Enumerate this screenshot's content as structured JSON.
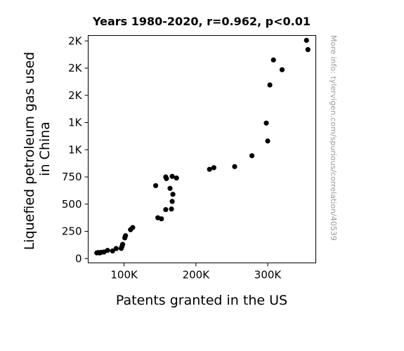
{
  "chart_data": {
    "type": "scatter",
    "title": "Years 1980-2020, r=0.962, p<0.01",
    "xlabel": "Patents granted in the US",
    "ylabel_lines": [
      "Liquefied petroleum gas used",
      "in China"
    ],
    "xlim": [
      50000,
      367000
    ],
    "ylim": [
      -40,
      2050
    ],
    "x_ticks": [
      {
        "value": 100000,
        "label": "100K"
      },
      {
        "value": 200000,
        "label": "200K"
      },
      {
        "value": 300000,
        "label": "300K"
      }
    ],
    "y_ticks": [
      {
        "value": 0,
        "label": "0"
      },
      {
        "value": 250,
        "label": "250"
      },
      {
        "value": 500,
        "label": "500"
      },
      {
        "value": 750,
        "label": "750"
      },
      {
        "value": 1000,
        "label": "1K"
      },
      {
        "value": 1250,
        "label": "1K"
      },
      {
        "value": 1500,
        "label": "2K"
      },
      {
        "value": 1750,
        "label": "2K"
      },
      {
        "value": 2000,
        "label": "2K"
      }
    ],
    "grid": false,
    "marker_color": "#000000",
    "points": [
      {
        "x": 62000,
        "y": 52
      },
      {
        "x": 64000,
        "y": 55
      },
      {
        "x": 66000,
        "y": 52
      },
      {
        "x": 67000,
        "y": 54
      },
      {
        "x": 68000,
        "y": 57
      },
      {
        "x": 72000,
        "y": 60
      },
      {
        "x": 77000,
        "y": 75
      },
      {
        "x": 84000,
        "y": 70
      },
      {
        "x": 89000,
        "y": 92
      },
      {
        "x": 96000,
        "y": 93
      },
      {
        "x": 97000,
        "y": 110
      },
      {
        "x": 98000,
        "y": 130
      },
      {
        "x": 101000,
        "y": 190
      },
      {
        "x": 102000,
        "y": 210
      },
      {
        "x": 109000,
        "y": 265
      },
      {
        "x": 112000,
        "y": 285
      },
      {
        "x": 144000,
        "y": 670
      },
      {
        "x": 147000,
        "y": 375
      },
      {
        "x": 152000,
        "y": 365
      },
      {
        "x": 158000,
        "y": 750
      },
      {
        "x": 158000,
        "y": 450
      },
      {
        "x": 159000,
        "y": 735
      },
      {
        "x": 164000,
        "y": 645
      },
      {
        "x": 166000,
        "y": 455
      },
      {
        "x": 167000,
        "y": 525
      },
      {
        "x": 167000,
        "y": 755
      },
      {
        "x": 168000,
        "y": 590
      },
      {
        "x": 173000,
        "y": 740
      },
      {
        "x": 219000,
        "y": 820
      },
      {
        "x": 225000,
        "y": 835
      },
      {
        "x": 254000,
        "y": 845
      },
      {
        "x": 278000,
        "y": 945
      },
      {
        "x": 298000,
        "y": 1245
      },
      {
        "x": 300000,
        "y": 1080
      },
      {
        "x": 303000,
        "y": 1595
      },
      {
        "x": 308000,
        "y": 1825
      },
      {
        "x": 320000,
        "y": 1735
      },
      {
        "x": 354000,
        "y": 2005
      },
      {
        "x": 356000,
        "y": 1920
      }
    ]
  },
  "watermark": "More info: tylervigen.com/spurious/correlation/40539"
}
